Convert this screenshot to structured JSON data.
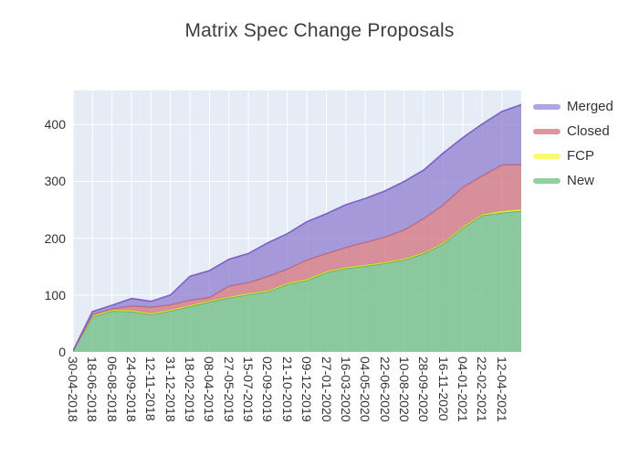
{
  "title": "Matrix Spec Change Proposals",
  "legend": {
    "items": [
      {
        "label": "Merged",
        "swatch_color": "#b3a3e3",
        "series": "Merged"
      },
      {
        "label": "Closed",
        "swatch_color": "#e2949d",
        "series": "Closed"
      },
      {
        "label": "FCP",
        "swatch_color": "#fafa70",
        "series": "FCP"
      },
      {
        "label": "New",
        "swatch_color": "#90cf9f",
        "series": "New"
      }
    ]
  },
  "chart_data": {
    "type": "area",
    "stacked": true,
    "title": "Matrix Spec Change Proposals",
    "categories": [
      "30-04-2018",
      "18-06-2018",
      "06-08-2018",
      "24-09-2018",
      "12-11-2018",
      "31-12-2018",
      "18-02-2019",
      "08-04-2019",
      "27-05-2019",
      "15-07-2019",
      "02-09-2019",
      "21-10-2019",
      "09-12-2019",
      "27-01-2020",
      "16-03-2020",
      "04-05-2020",
      "22-06-2020",
      "10-08-2020",
      "28-09-2020",
      "16-11-2020",
      "04-01-2021",
      "22-02-2021",
      "12-04-2021"
    ],
    "values_note": "series arrays hold 24 points: one per labeled tick plus a final point at the plot's right edge (data continues one tick-interval past 12-04-2021)",
    "series": [
      {
        "name": "New",
        "line_color": "#4fae68",
        "fill_color": "#7cc28e",
        "values": [
          2,
          62,
          72,
          71,
          66,
          72,
          80,
          88,
          95,
          101,
          106,
          119,
          126,
          140,
          147,
          151,
          156,
          162,
          173,
          190,
          218,
          240,
          245,
          248
        ]
      },
      {
        "name": "FCP",
        "line_color": "#dcdc30",
        "fill_color": "#f0ee4a",
        "values": [
          0,
          2,
          2,
          2,
          2,
          2,
          2,
          2,
          2,
          2,
          2,
          2,
          2,
          2,
          2,
          2,
          2,
          2,
          2,
          2,
          2,
          2,
          3,
          3
        ]
      },
      {
        "name": "Closed",
        "line_color": "#c45f6d",
        "fill_color": "#d57f8a",
        "values": [
          0,
          2,
          2,
          8,
          11,
          9,
          9,
          6,
          19,
          19,
          25,
          25,
          34,
          31,
          35,
          40,
          44,
          51,
          60,
          67,
          70,
          68,
          81,
          79
        ]
      },
      {
        "name": "Merged",
        "line_color": "#7d5fc8",
        "fill_color": "#9b8bd5",
        "values": [
          0,
          5,
          6,
          13,
          10,
          17,
          42,
          47,
          47,
          51,
          59,
          62,
          67,
          70,
          75,
          77,
          81,
          85,
          85,
          91,
          87,
          91,
          94,
          105
        ]
      }
    ],
    "stack_totals": [
      2,
      71,
      82,
      94,
      89,
      100,
      133,
      143,
      163,
      173,
      192,
      208,
      229,
      243,
      259,
      270,
      283,
      300,
      320,
      350,
      377,
      401,
      423,
      435
    ],
    "y_ticks": [
      0,
      100,
      200,
      300,
      400
    ],
    "ylim": [
      0,
      460
    ],
    "xlabel": "",
    "ylabel": "",
    "grid": true,
    "legend_position": "right-top",
    "plot_bg_color": "#e5ecf6",
    "grid_color": "#ffffff",
    "tick_label_color": "#333333",
    "title_color": "#3d3d3d"
  }
}
